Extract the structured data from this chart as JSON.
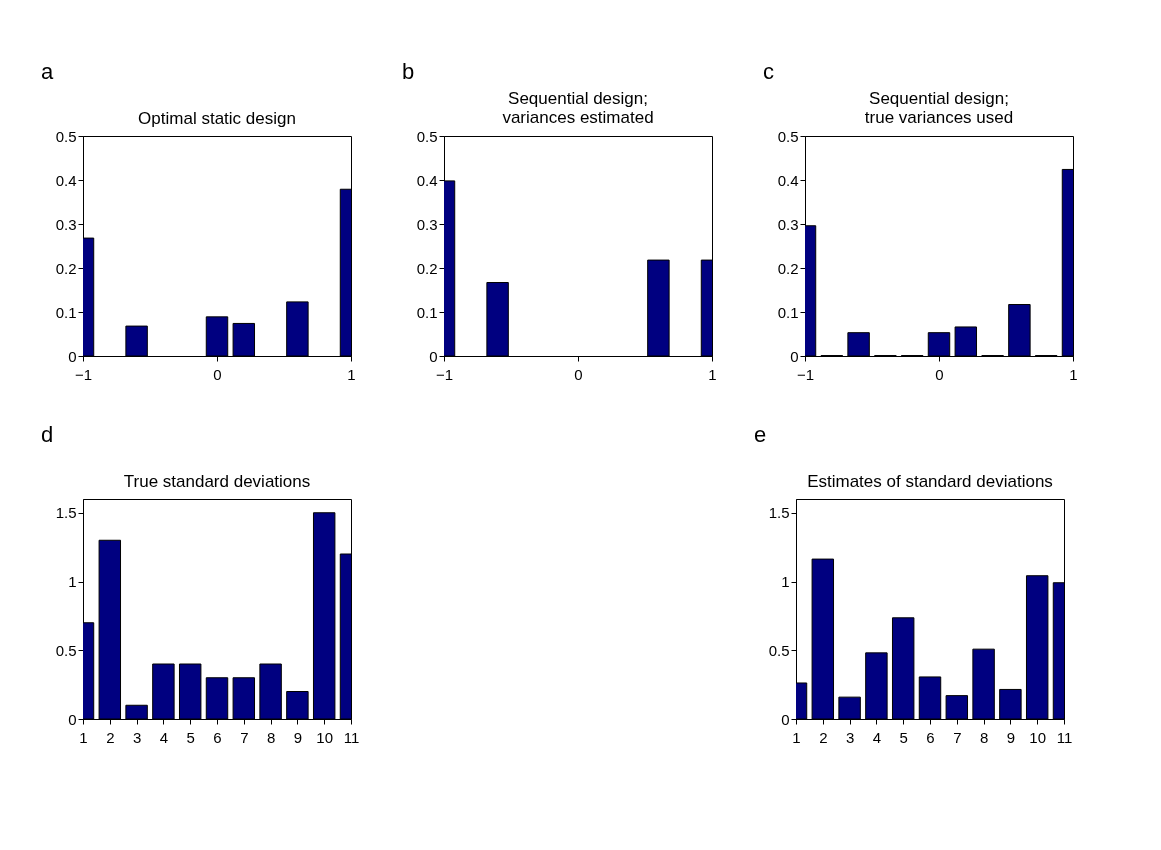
{
  "chart_data": [
    {
      "type": "bar",
      "title": "Optimal static design",
      "annotations": [
        "a"
      ],
      "x": [
        -1,
        -0.6,
        0,
        0.2,
        0.6,
        1
      ],
      "values": [
        0.268,
        0.068,
        0.089,
        0.074,
        0.123,
        0.379
      ],
      "color": "#000080",
      "xlim": [
        -1,
        1
      ],
      "xticks": [
        -1,
        0,
        1
      ],
      "ylim": [
        0,
        0.5
      ],
      "yticks": [
        0,
        0.1,
        0.2,
        0.3,
        0.4,
        0.5
      ],
      "grid": false
    },
    {
      "type": "bar",
      "title": "Sequential design;\nvariances estimated",
      "annotations": [
        "b"
      ],
      "x": [
        -1,
        -0.6,
        0.6,
        1
      ],
      "values": [
        0.398,
        0.167,
        0.218,
        0.218
      ],
      "color": "#000080",
      "xlim": [
        -1,
        1
      ],
      "xticks": [
        -1,
        0,
        1
      ],
      "ylim": [
        0,
        0.5
      ],
      "yticks": [
        0,
        0.1,
        0.2,
        0.3,
        0.4,
        0.5
      ],
      "grid": false
    },
    {
      "type": "bar",
      "title": "Sequential design;\ntrue variances used",
      "annotations": [
        "c"
      ],
      "x": [
        -1,
        -0.8,
        -0.6,
        -0.4,
        -0.2,
        0,
        0.2,
        0.4,
        0.6,
        0.8,
        1
      ],
      "values": [
        0.296,
        0.001,
        0.053,
        0.001,
        0.001,
        0.053,
        0.066,
        0.001,
        0.117,
        0.001,
        0.424
      ],
      "color": "#000080",
      "xlim": [
        -1,
        1
      ],
      "xticks": [
        -1,
        0,
        1
      ],
      "ylim": [
        0,
        0.5
      ],
      "yticks": [
        0,
        0.1,
        0.2,
        0.3,
        0.4,
        0.5
      ],
      "grid": false
    },
    {
      "type": "bar",
      "title": "True standard deviations",
      "annotations": [
        "d"
      ],
      "x": [
        1,
        2,
        3,
        4,
        5,
        6,
        7,
        8,
        9,
        10,
        11
      ],
      "values": [
        0.7,
        1.3,
        0.1,
        0.4,
        0.4,
        0.3,
        0.3,
        0.4,
        0.2,
        1.5,
        1.2
      ],
      "color": "#000080",
      "xlim": [
        1,
        11
      ],
      "xticks": [
        1,
        2,
        3,
        4,
        5,
        6,
        7,
        8,
        9,
        10,
        11
      ],
      "ylim": [
        0,
        1.6
      ],
      "yticks": [
        0,
        0.5,
        1,
        1.5
      ],
      "grid": false
    },
    {
      "type": "bar",
      "title": "Estimates of standard deviations",
      "annotations": [
        "e"
      ],
      "x": [
        1,
        2,
        3,
        4,
        5,
        6,
        7,
        8,
        9,
        10,
        11
      ],
      "values": [
        0.262,
        1.163,
        0.159,
        0.481,
        0.736,
        0.306,
        0.17,
        0.508,
        0.215,
        1.042,
        0.991
      ],
      "color": "#000080",
      "xlim": [
        1,
        11
      ],
      "xticks": [
        1,
        2,
        3,
        4,
        5,
        6,
        7,
        8,
        9,
        10,
        11
      ],
      "ylim": [
        0,
        1.6
      ],
      "yticks": [
        0,
        0.5,
        1,
        1.5
      ],
      "grid": false
    }
  ]
}
